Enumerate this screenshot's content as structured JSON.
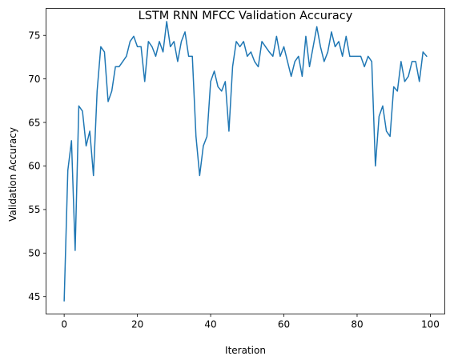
{
  "chart_data": {
    "type": "line",
    "title": "LSTM RNN MFCC Validation Accuracy",
    "xlabel": "Iteration",
    "ylabel": "Validation Accuracy",
    "xlim": [
      -4.95,
      103.95
    ],
    "ylim": [
      43.0,
      78.1
    ],
    "xticks": [
      0,
      20,
      40,
      60,
      80,
      100
    ],
    "yticks": [
      45,
      50,
      55,
      60,
      65,
      70,
      75
    ],
    "grid": false,
    "legend": "none",
    "line_color": "#1f77b4",
    "series": [
      {
        "x": [
          0,
          1,
          2,
          3,
          4,
          5,
          6,
          7,
          8,
          9,
          10,
          11,
          12,
          13,
          14,
          15,
          16,
          17,
          18,
          19,
          20,
          21,
          22,
          23,
          24,
          25,
          26,
          27,
          28,
          29,
          30,
          31,
          32,
          33,
          34,
          35,
          36,
          37,
          38,
          39,
          40,
          41,
          42,
          43,
          44,
          45,
          46,
          47,
          48,
          49,
          50,
          51,
          52,
          53,
          54,
          55,
          56,
          57,
          58,
          59,
          60,
          61,
          62,
          63,
          64,
          65,
          66,
          67,
          68,
          69,
          70,
          71,
          72,
          73,
          74,
          75,
          76,
          77,
          78,
          79,
          80,
          81,
          82,
          83,
          84,
          85,
          86,
          87,
          88,
          89,
          90,
          91,
          92,
          93,
          94,
          95,
          96,
          97,
          98,
          99
        ],
        "values": [
          44.5,
          59.5,
          62.9,
          50.3,
          66.9,
          66.3,
          62.3,
          64.0,
          58.9,
          68.6,
          73.7,
          73.1,
          67.4,
          68.6,
          71.4,
          71.4,
          72.0,
          72.6,
          74.3,
          74.9,
          73.7,
          73.7,
          69.7,
          74.3,
          73.7,
          72.6,
          74.3,
          73.1,
          76.6,
          73.7,
          74.3,
          72.0,
          74.3,
          75.4,
          72.6,
          72.6,
          63.4,
          58.9,
          62.3,
          63.4,
          69.7,
          70.9,
          69.1,
          68.6,
          69.7,
          64.0,
          71.4,
          74.3,
          73.7,
          74.3,
          72.6,
          73.1,
          72.0,
          71.4,
          74.3,
          73.7,
          73.1,
          72.6,
          74.9,
          72.6,
          73.7,
          72.0,
          70.3,
          72.0,
          72.6,
          70.3,
          74.9,
          71.4,
          73.7,
          76.0,
          73.7,
          72.0,
          73.1,
          75.4,
          73.7,
          74.3,
          72.6,
          74.9,
          72.6,
          72.6,
          72.6,
          72.6,
          71.4,
          72.6,
          72.0,
          60.0,
          65.7,
          66.9,
          64.0,
          63.4,
          69.1,
          68.6,
          72.0,
          69.7,
          70.3,
          72.0,
          72.0,
          69.7,
          73.1,
          72.6
        ]
      }
    ]
  }
}
